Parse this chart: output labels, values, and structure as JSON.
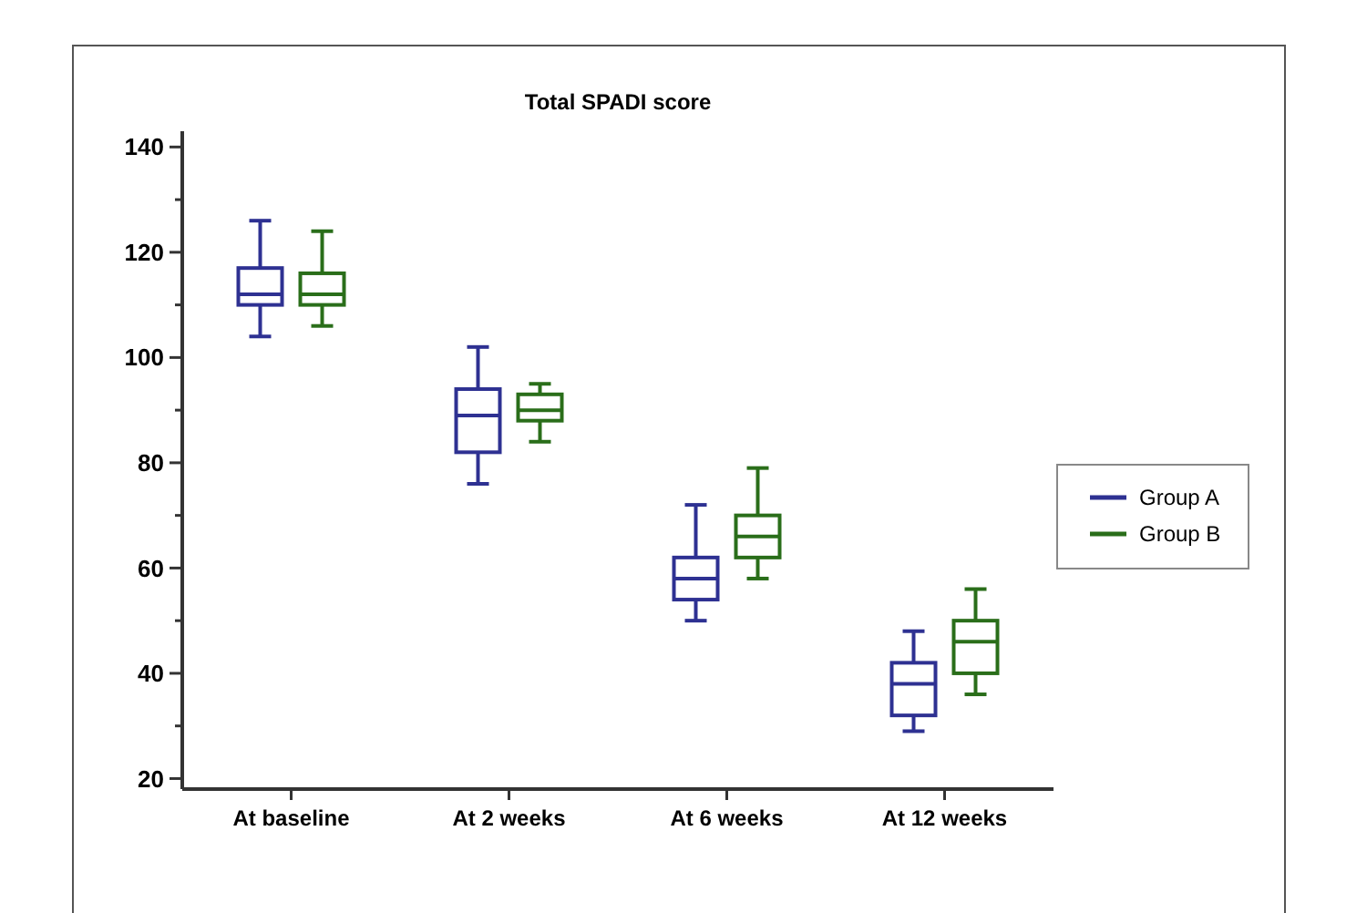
{
  "chart_data": {
    "type": "box",
    "title": "Total SPADI score",
    "categories": [
      "At baseline",
      "At 2 weeks",
      "At 6 weeks",
      "At 12 weeks"
    ],
    "ylim": [
      18,
      143
    ],
    "yticks": [
      20,
      {
        "value": 30,
        "label": null
      },
      40,
      {
        "value": 50,
        "label": null
      },
      60,
      {
        "value": 70,
        "label": null
      },
      80,
      {
        "value": 90,
        "label": null
      },
      100,
      {
        "value": 110,
        "label": null
      },
      120,
      {
        "value": 130,
        "label": null
      },
      140
    ],
    "legend": "right",
    "grid": false,
    "series": [
      {
        "name": "Group A",
        "color": "#2e3192",
        "boxes": [
          {
            "low": 104,
            "q1": 110,
            "median": 112,
            "q3": 117,
            "high": 126
          },
          {
            "low": 76,
            "q1": 82,
            "median": 89,
            "q3": 94,
            "high": 102
          },
          {
            "low": 50,
            "q1": 54,
            "median": 58,
            "q3": 62,
            "high": 72
          },
          {
            "low": 29,
            "q1": 32,
            "median": 38,
            "q3": 42,
            "high": 48
          }
        ]
      },
      {
        "name": "Group B",
        "color": "#2a6e1a",
        "boxes": [
          {
            "low": 106,
            "q1": 110,
            "median": 112,
            "q3": 116,
            "high": 124
          },
          {
            "low": 84,
            "q1": 88,
            "median": 90,
            "q3": 93,
            "high": 95
          },
          {
            "low": 58,
            "q1": 62,
            "median": 66,
            "q3": 70,
            "high": 79
          },
          {
            "low": 36,
            "q1": 40,
            "median": 46,
            "q3": 50,
            "high": 56
          }
        ]
      }
    ]
  }
}
